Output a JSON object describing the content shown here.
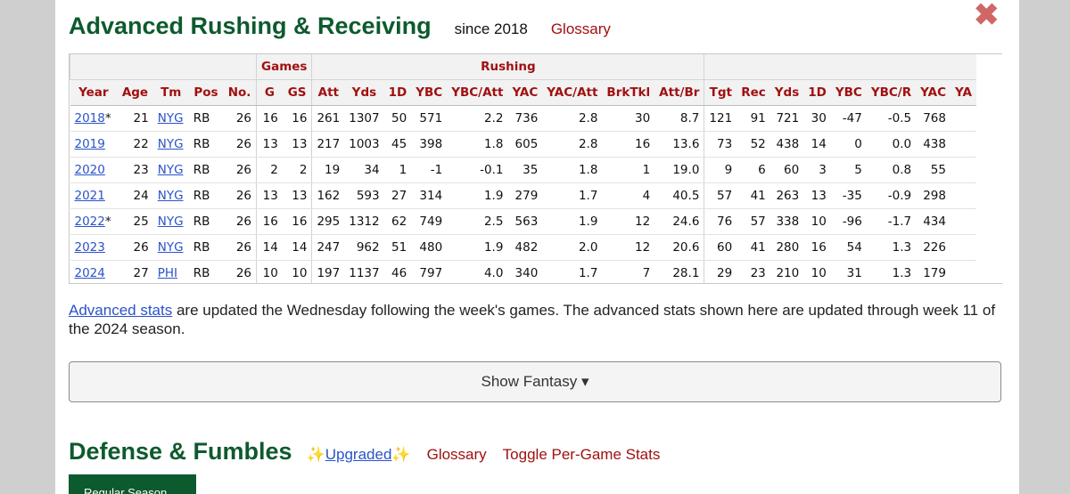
{
  "header": {
    "title": "Advanced Rushing & Receiving",
    "since": "since 2018",
    "glossary": "Glossary",
    "close_glyph": "✖"
  },
  "table": {
    "over_headers": {
      "games": "Games",
      "rushing": "Rushing"
    },
    "columns": [
      "Year",
      "Age",
      "Tm",
      "Pos",
      "No.",
      "G",
      "GS",
      "Att",
      "Yds",
      "1D",
      "YBC",
      "YBC/Att",
      "YAC",
      "YAC/Att",
      "BrkTkl",
      "Att/Br",
      "Tgt",
      "Rec",
      "Yds",
      "1D",
      "YBC",
      "YBC/R",
      "YAC",
      "YA"
    ],
    "rows": [
      {
        "year": "2018",
        "mark": "*",
        "age": "21",
        "tm": "NYG",
        "pos": "RB",
        "no": "26",
        "g": "16",
        "gs": "16",
        "att": "261",
        "yds": "1307",
        "fd": "50",
        "ybc": "571",
        "ybc_att": "2.2",
        "yac": "736",
        "yac_att": "2.8",
        "brktkl": "30",
        "att_br": "8.7",
        "tgt": "121",
        "rec": "91",
        "ryds": "721",
        "rfd": "30",
        "rybc": "-47",
        "ybc_r": "-0.5",
        "ryac": "768"
      },
      {
        "year": "2019",
        "mark": "",
        "age": "22",
        "tm": "NYG",
        "pos": "RB",
        "no": "26",
        "g": "13",
        "gs": "13",
        "att": "217",
        "yds": "1003",
        "fd": "45",
        "ybc": "398",
        "ybc_att": "1.8",
        "yac": "605",
        "yac_att": "2.8",
        "brktkl": "16",
        "att_br": "13.6",
        "tgt": "73",
        "rec": "52",
        "ryds": "438",
        "rfd": "14",
        "rybc": "0",
        "ybc_r": "0.0",
        "ryac": "438"
      },
      {
        "year": "2020",
        "mark": "",
        "age": "23",
        "tm": "NYG",
        "pos": "RB",
        "no": "26",
        "g": "2",
        "gs": "2",
        "att": "19",
        "yds": "34",
        "fd": "1",
        "ybc": "-1",
        "ybc_att": "-0.1",
        "yac": "35",
        "yac_att": "1.8",
        "brktkl": "1",
        "att_br": "19.0",
        "tgt": "9",
        "rec": "6",
        "ryds": "60",
        "rfd": "3",
        "rybc": "5",
        "ybc_r": "0.8",
        "ryac": "55"
      },
      {
        "year": "2021",
        "mark": "",
        "age": "24",
        "tm": "NYG",
        "pos": "RB",
        "no": "26",
        "g": "13",
        "gs": "13",
        "att": "162",
        "yds": "593",
        "fd": "27",
        "ybc": "314",
        "ybc_att": "1.9",
        "yac": "279",
        "yac_att": "1.7",
        "brktkl": "4",
        "att_br": "40.5",
        "tgt": "57",
        "rec": "41",
        "ryds": "263",
        "rfd": "13",
        "rybc": "-35",
        "ybc_r": "-0.9",
        "ryac": "298"
      },
      {
        "year": "2022",
        "mark": "*",
        "age": "25",
        "tm": "NYG",
        "pos": "RB",
        "no": "26",
        "g": "16",
        "gs": "16",
        "att": "295",
        "yds": "1312",
        "fd": "62",
        "ybc": "749",
        "ybc_att": "2.5",
        "yac": "563",
        "yac_att": "1.9",
        "brktkl": "12",
        "att_br": "24.6",
        "tgt": "76",
        "rec": "57",
        "ryds": "338",
        "rfd": "10",
        "rybc": "-96",
        "ybc_r": "-1.7",
        "ryac": "434"
      },
      {
        "year": "2023",
        "mark": "",
        "age": "26",
        "tm": "NYG",
        "pos": "RB",
        "no": "26",
        "g": "14",
        "gs": "14",
        "att": "247",
        "yds": "962",
        "fd": "51",
        "ybc": "480",
        "ybc_att": "1.9",
        "yac": "482",
        "yac_att": "2.0",
        "brktkl": "12",
        "att_br": "20.6",
        "tgt": "60",
        "rec": "41",
        "ryds": "280",
        "rfd": "16",
        "rybc": "54",
        "ybc_r": "1.3",
        "ryac": "226"
      },
      {
        "year": "2024",
        "mark": "",
        "age": "27",
        "tm": "PHI",
        "pos": "RB",
        "no": "26",
        "g": "10",
        "gs": "10",
        "att": "197",
        "yds": "1137",
        "fd": "46",
        "ybc": "797",
        "ybc_att": "4.0",
        "yac": "340",
        "yac_att": "1.7",
        "brktkl": "7",
        "att_br": "28.1",
        "tgt": "29",
        "rec": "23",
        "ryds": "210",
        "rfd": "10",
        "rybc": "31",
        "ybc_r": "1.3",
        "ryac": "179"
      }
    ]
  },
  "note": {
    "link": "Advanced stats",
    "text": " are updated the Wednesday following the week's games. The advanced stats shown here are updated through week 11 of the 2024 season."
  },
  "fantasy_button": "Show Fantasy ▾",
  "section2": {
    "title": "Defense & Fumbles",
    "sparkle": "✨",
    "upgraded": "Upgraded",
    "glossary": "Glossary",
    "toggle": "Toggle Per-Game Stats",
    "tab": "Regular Season"
  },
  "colors": {
    "accent_green": "#0d5a2e",
    "link_red": "#a01010",
    "link_blue": "#2a53c9"
  }
}
